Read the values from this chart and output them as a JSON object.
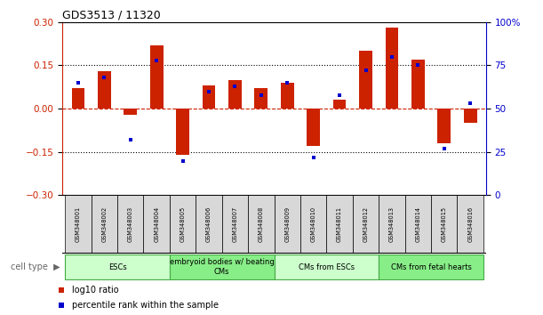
{
  "title": "GDS3513 / 11320",
  "samples": [
    "GSM348001",
    "GSM348002",
    "GSM348003",
    "GSM348004",
    "GSM348005",
    "GSM348006",
    "GSM348007",
    "GSM348008",
    "GSM348009",
    "GSM348010",
    "GSM348011",
    "GSM348012",
    "GSM348013",
    "GSM348014",
    "GSM348015",
    "GSM348016"
  ],
  "log10_ratio": [
    0.07,
    0.13,
    -0.02,
    0.22,
    -0.16,
    0.08,
    0.1,
    0.07,
    0.09,
    -0.13,
    0.03,
    0.2,
    0.28,
    0.17,
    -0.12,
    -0.05
  ],
  "percentile_rank": [
    65,
    68,
    32,
    78,
    20,
    60,
    63,
    58,
    65,
    22,
    58,
    72,
    80,
    75,
    27,
    53
  ],
  "bar_color": "#cc2200",
  "dot_color": "#0000cc",
  "ylim": [
    -0.3,
    0.3
  ],
  "y2lim": [
    0,
    100
  ],
  "yticks": [
    -0.3,
    -0.15,
    0,
    0.15,
    0.3
  ],
  "y2ticks": [
    0,
    25,
    50,
    75,
    100
  ],
  "hline_y": [
    0.15,
    -0.15
  ],
  "zero_line_color": "#cc2200",
  "cell_types": [
    {
      "label": "ESCs",
      "start": 0,
      "end": 3,
      "color": "#ccffcc"
    },
    {
      "label": "embryoid bodies w/ beating\nCMs",
      "start": 4,
      "end": 7,
      "color": "#88ee88"
    },
    {
      "label": "CMs from ESCs",
      "start": 8,
      "end": 11,
      "color": "#ccffcc"
    },
    {
      "label": "CMs from fetal hearts",
      "start": 12,
      "end": 15,
      "color": "#88ee88"
    }
  ],
  "legend_ratio_label": "log10 ratio",
  "legend_pct_label": "percentile rank within the sample",
  "cell_type_label": "cell type"
}
